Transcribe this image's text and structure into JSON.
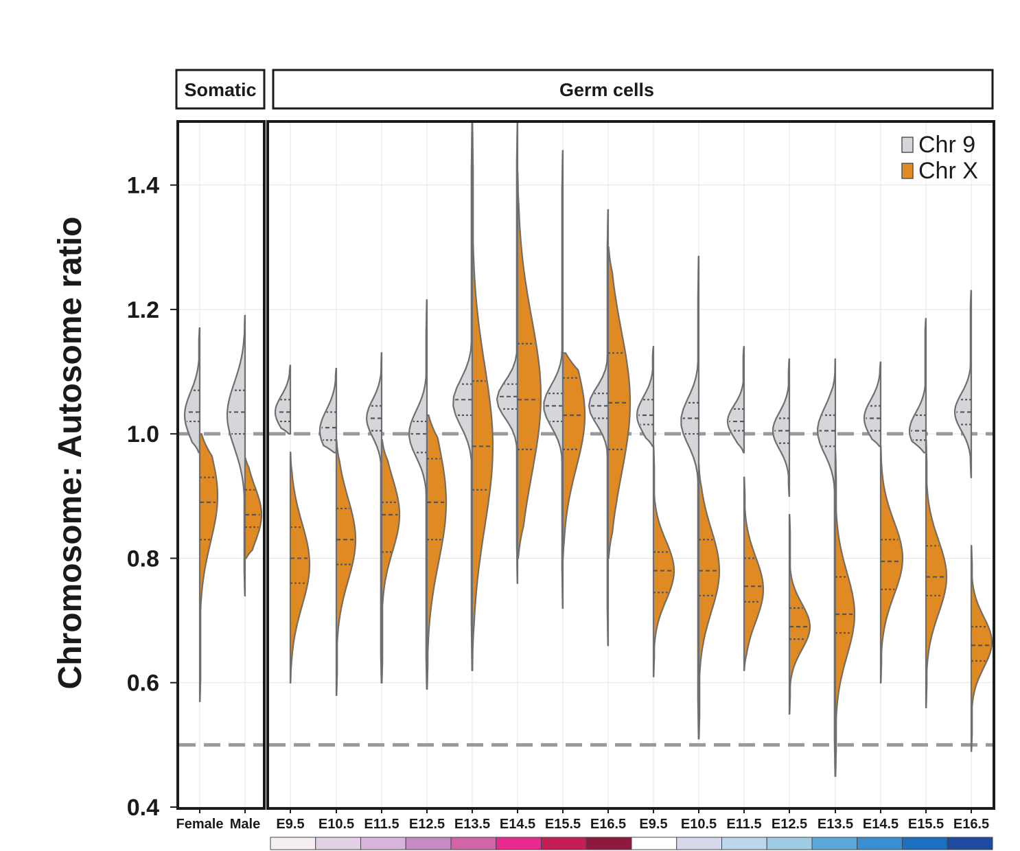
{
  "chart_data": {
    "type": "split-violin",
    "ylabel": "Chromosome: Autosome ratio",
    "xlabel": "",
    "ylim": [
      0.4,
      1.5
    ],
    "yticks": [
      "0.4",
      "0.6",
      "0.8",
      "1.0",
      "1.2",
      "1.4"
    ],
    "ytick_values": [
      0.4,
      0.6,
      0.8,
      1.0,
      1.2,
      1.4
    ],
    "reference_lines": [
      1.0,
      0.5
    ],
    "grid": true,
    "legend_position": "top-right",
    "panels": [
      {
        "label": "Somatic",
        "categories": [
          "Female",
          "Male"
        ]
      },
      {
        "label": "Germ cells",
        "categories": [
          "E9.5",
          "E10.5",
          "E11.5",
          "E12.5",
          "E13.5",
          "E14.5",
          "E15.5",
          "E16.5",
          "E9.5",
          "E10.5",
          "E11.5",
          "E12.5",
          "E13.5",
          "E14.5",
          "E15.5",
          "E16.5"
        ]
      }
    ],
    "categories": [
      "Female",
      "Male",
      "E9.5",
      "E10.5",
      "E11.5",
      "E12.5",
      "E13.5",
      "E14.5",
      "E15.5",
      "E16.5",
      "E9.5",
      "E10.5",
      "E11.5",
      "E12.5",
      "E13.5",
      "E14.5",
      "E15.5",
      "E16.5"
    ],
    "series": [
      {
        "name": "Chr 9",
        "color": "#d4d6d9",
        "side": "left",
        "stats": [
          {
            "min": 0.97,
            "max": 1.17,
            "q1": 1.02,
            "median": 1.035,
            "q3": 1.07,
            "mode": 1.03,
            "width": 22
          },
          {
            "min": 0.74,
            "max": 1.19,
            "q1": 1.0,
            "median": 1.035,
            "q3": 1.07,
            "mode": 1.03,
            "width": 26
          },
          {
            "min": 1.0,
            "max": 1.11,
            "q1": 1.02,
            "median": 1.035,
            "q3": 1.055,
            "mode": 1.035,
            "width": 22
          },
          {
            "min": 0.97,
            "max": 1.105,
            "q1": 0.99,
            "median": 1.01,
            "q3": 1.035,
            "mode": 1.005,
            "width": 24
          },
          {
            "min": 0.6,
            "max": 1.13,
            "q1": 1.005,
            "median": 1.025,
            "q3": 1.045,
            "mode": 1.025,
            "width": 22
          },
          {
            "min": 0.59,
            "max": 1.215,
            "q1": 0.97,
            "median": 1.0,
            "q3": 1.02,
            "mode": 1.0,
            "width": 26
          },
          {
            "min": 0.62,
            "max": 1.5,
            "q1": 1.03,
            "median": 1.055,
            "q3": 1.08,
            "mode": 1.05,
            "width": 28
          },
          {
            "min": 0.76,
            "max": 1.5,
            "q1": 1.04,
            "median": 1.06,
            "q3": 1.08,
            "mode": 1.055,
            "width": 30
          },
          {
            "min": 0.72,
            "max": 1.455,
            "q1": 1.02,
            "median": 1.045,
            "q3": 1.065,
            "mode": 1.045,
            "width": 28
          },
          {
            "min": 0.66,
            "max": 1.36,
            "q1": 1.025,
            "median": 1.045,
            "q3": 1.065,
            "mode": 1.045,
            "width": 28
          },
          {
            "min": 0.98,
            "max": 1.14,
            "q1": 1.015,
            "median": 1.03,
            "q3": 1.055,
            "mode": 1.03,
            "width": 24
          },
          {
            "min": 0.51,
            "max": 1.285,
            "q1": 1.0,
            "median": 1.025,
            "q3": 1.05,
            "mode": 1.02,
            "width": 26
          },
          {
            "min": 0.97,
            "max": 1.14,
            "q1": 1.005,
            "median": 1.02,
            "q3": 1.04,
            "mode": 1.02,
            "width": 24
          },
          {
            "min": 0.9,
            "max": 1.12,
            "q1": 0.985,
            "median": 1.005,
            "q3": 1.025,
            "mode": 1.005,
            "width": 24
          },
          {
            "min": 0.45,
            "max": 1.12,
            "q1": 0.98,
            "median": 1.005,
            "q3": 1.03,
            "mode": 1.005,
            "width": 26
          },
          {
            "min": 0.98,
            "max": 1.115,
            "q1": 1.005,
            "median": 1.025,
            "q3": 1.045,
            "mode": 1.025,
            "width": 24
          },
          {
            "min": 0.97,
            "max": 1.185,
            "q1": 0.99,
            "median": 1.005,
            "q3": 1.03,
            "mode": 1.005,
            "width": 24
          },
          {
            "min": 0.93,
            "max": 1.23,
            "q1": 1.015,
            "median": 1.035,
            "q3": 1.055,
            "mode": 1.035,
            "width": 24
          }
        ]
      },
      {
        "name": "Chr X",
        "color": "#e08a24",
        "side": "right",
        "stats": [
          {
            "min": 0.57,
            "max": 1.0,
            "q1": 0.83,
            "median": 0.89,
            "q3": 0.93,
            "mode": 0.9,
            "width": 26
          },
          {
            "min": 0.8,
            "max": 0.96,
            "q1": 0.85,
            "median": 0.87,
            "q3": 0.91,
            "mode": 0.87,
            "width": 24
          },
          {
            "min": 0.6,
            "max": 0.97,
            "q1": 0.76,
            "median": 0.8,
            "q3": 0.85,
            "mode": 0.79,
            "width": 28
          },
          {
            "min": 0.58,
            "max": 0.99,
            "q1": 0.79,
            "median": 0.83,
            "q3": 0.88,
            "mode": 0.83,
            "width": 28
          },
          {
            "min": 0.6,
            "max": 0.99,
            "q1": 0.81,
            "median": 0.87,
            "q3": 0.89,
            "mode": 0.87,
            "width": 26
          },
          {
            "min": 0.59,
            "max": 1.03,
            "q1": 0.83,
            "median": 0.89,
            "q3": 0.96,
            "mode": 0.89,
            "width": 28
          },
          {
            "min": 0.62,
            "max": 1.5,
            "q1": 0.91,
            "median": 0.98,
            "q3": 1.085,
            "mode": 0.98,
            "width": 30
          },
          {
            "min": 0.8,
            "max": 1.42,
            "q1": 0.975,
            "median": 1.055,
            "q3": 1.145,
            "mode": 1.06,
            "width": 34
          },
          {
            "min": 0.8,
            "max": 1.13,
            "q1": 0.975,
            "median": 1.03,
            "q3": 1.09,
            "mode": 1.03,
            "width": 32
          },
          {
            "min": 0.8,
            "max": 1.3,
            "q1": 0.975,
            "median": 1.05,
            "q3": 1.13,
            "mode": 1.05,
            "width": 32
          },
          {
            "min": 0.61,
            "max": 0.98,
            "q1": 0.745,
            "median": 0.78,
            "q3": 0.81,
            "mode": 0.78,
            "width": 30
          },
          {
            "min": 0.51,
            "max": 0.95,
            "q1": 0.74,
            "median": 0.78,
            "q3": 0.83,
            "mode": 0.78,
            "width": 30
          },
          {
            "min": 0.62,
            "max": 0.93,
            "q1": 0.73,
            "median": 0.755,
            "q3": 0.8,
            "mode": 0.75,
            "width": 28
          },
          {
            "min": 0.55,
            "max": 0.87,
            "q1": 0.67,
            "median": 0.69,
            "q3": 0.72,
            "mode": 0.69,
            "width": 30
          },
          {
            "min": 0.45,
            "max": 0.97,
            "q1": 0.68,
            "median": 0.71,
            "q3": 0.77,
            "mode": 0.71,
            "width": 28
          },
          {
            "min": 0.6,
            "max": 0.98,
            "q1": 0.75,
            "median": 0.795,
            "q3": 0.83,
            "mode": 0.8,
            "width": 32
          },
          {
            "min": 0.56,
            "max": 0.99,
            "q1": 0.74,
            "median": 0.77,
            "q3": 0.82,
            "mode": 0.77,
            "width": 30
          },
          {
            "min": 0.49,
            "max": 0.82,
            "q1": 0.635,
            "median": 0.66,
            "q3": 0.69,
            "mode": 0.665,
            "width": 30
          }
        ]
      }
    ],
    "color_strip": [
      "#f5eff4",
      "#e3cfe6",
      "#d8b4dc",
      "#c58bc4",
      "#d264a8",
      "#e82a8e",
      "#c41f55",
      "#8b1a3d",
      "#ffffff",
      "#d4d8e8",
      "#bcd6ec",
      "#9fcce4",
      "#5aa8d8",
      "#3a8fd2",
      "#1d6fc0",
      "#1e4aa0"
    ],
    "legend": [
      {
        "label": "Chr 9",
        "color": "#d4d6d9"
      },
      {
        "label": "Chr X",
        "color": "#e08a24"
      }
    ]
  }
}
